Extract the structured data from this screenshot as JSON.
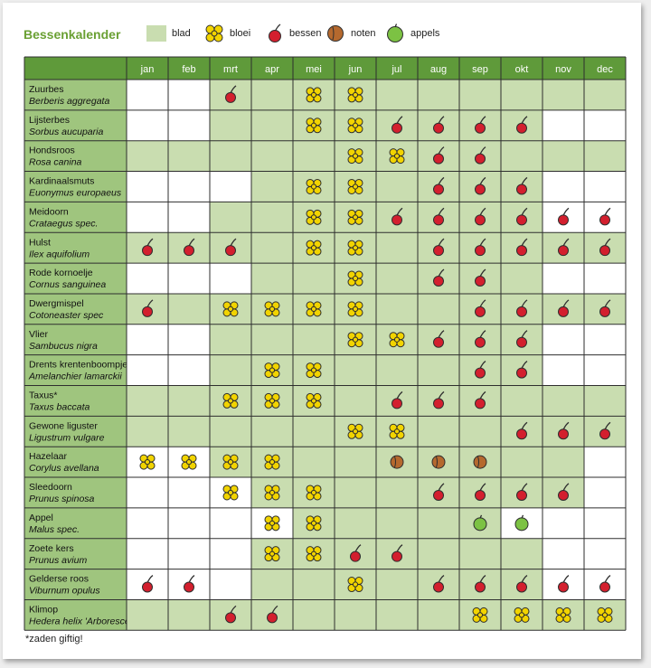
{
  "title": "Bessenkalender",
  "footnote": "*zaden giftig!",
  "legend": {
    "blad": "blad",
    "bloei": "bloei",
    "bessen": "bessen",
    "noten": "noten",
    "appels": "appels"
  },
  "colors": {
    "header_green": "#5f9a3a",
    "leaf": "#c9ddb0",
    "name_col": "#9fc57e",
    "border": "#2e2e2e",
    "berry": "#d31f2e",
    "nut": "#b5692e",
    "apple": "#7cc243",
    "flower": "#f2d400"
  },
  "chart_data": {
    "type": "table",
    "title": "Bessenkalender",
    "months": [
      "jan",
      "feb",
      "mrt",
      "apr",
      "mei",
      "jun",
      "jul",
      "aug",
      "sep",
      "okt",
      "nov",
      "dec"
    ],
    "rows": [
      {
        "name": "Zuurbes",
        "latin": "Berberis aggregata",
        "leaf": [
          0,
          0,
          1,
          1,
          1,
          1,
          1,
          1,
          1,
          1,
          1,
          1
        ],
        "marks": [
          "",
          "",
          "bessen",
          "",
          "bloei",
          "bloei",
          "",
          "",
          "",
          "",
          "",
          ""
        ]
      },
      {
        "name": "Lijsterbes",
        "latin": "Sorbus aucuparia",
        "leaf": [
          0,
          0,
          1,
          1,
          1,
          1,
          1,
          1,
          1,
          1,
          0,
          0
        ],
        "marks": [
          "",
          "",
          "",
          "",
          "bloei",
          "bloei",
          "bessen",
          "bessen",
          "bessen",
          "bessen",
          "",
          ""
        ]
      },
      {
        "name": "Hondsroos",
        "latin": "Rosa canina",
        "leaf": [
          1,
          1,
          1,
          1,
          1,
          1,
          1,
          1,
          1,
          1,
          1,
          1
        ],
        "marks": [
          "",
          "",
          "",
          "",
          "",
          "bloei",
          "bloei",
          "bessen",
          "bessen",
          "",
          "",
          ""
        ]
      },
      {
        "name": "Kardinaalsmuts",
        "latin": "Euonymus europaeus",
        "leaf": [
          0,
          0,
          0,
          1,
          1,
          1,
          1,
          1,
          1,
          1,
          0,
          0
        ],
        "marks": [
          "",
          "",
          "",
          "",
          "bloei",
          "bloei",
          "",
          "bessen",
          "bessen",
          "bessen",
          "",
          ""
        ]
      },
      {
        "name": "Meidoorn",
        "latin": "Crataegus spec.",
        "leaf": [
          0,
          0,
          1,
          1,
          1,
          1,
          1,
          1,
          1,
          1,
          0,
          0
        ],
        "marks": [
          "",
          "",
          "",
          "",
          "bloei",
          "bloei",
          "bessen",
          "bessen",
          "bessen",
          "bessen",
          "bessen",
          "bessen"
        ]
      },
      {
        "name": "Hulst",
        "latin": "Ilex aquifolium",
        "leaf": [
          1,
          1,
          1,
          1,
          1,
          1,
          1,
          1,
          1,
          1,
          1,
          1
        ],
        "marks": [
          "bessen",
          "bessen",
          "bessen",
          "",
          "bloei",
          "bloei",
          "",
          "bessen",
          "bessen",
          "bessen",
          "bessen",
          "bessen"
        ]
      },
      {
        "name": "Rode kornoelje",
        "latin": "Cornus sanguinea",
        "leaf": [
          0,
          0,
          0,
          1,
          1,
          1,
          1,
          1,
          1,
          1,
          0,
          0
        ],
        "marks": [
          "",
          "",
          "",
          "",
          "",
          "bloei",
          "",
          "bessen",
          "bessen",
          "",
          "",
          ""
        ]
      },
      {
        "name": "Dwergmispel",
        "latin": "Cotoneaster spec",
        "leaf": [
          1,
          1,
          1,
          1,
          1,
          1,
          1,
          1,
          1,
          1,
          1,
          1
        ],
        "marks": [
          "bessen",
          "",
          "bloei",
          "bloei",
          "bloei",
          "bloei",
          "",
          "",
          "bessen",
          "bessen",
          "bessen",
          "bessen"
        ]
      },
      {
        "name": "Vlier",
        "latin": "Sambucus nigra",
        "leaf": [
          0,
          0,
          1,
          1,
          1,
          1,
          1,
          1,
          1,
          1,
          0,
          0
        ],
        "marks": [
          "",
          "",
          "",
          "",
          "",
          "bloei",
          "bloei",
          "bessen",
          "bessen",
          "bessen",
          "",
          ""
        ]
      },
      {
        "name": "Drents krentenboompje",
        "latin": "Amelanchier lamarckii",
        "leaf": [
          0,
          0,
          1,
          1,
          1,
          1,
          1,
          1,
          1,
          1,
          0,
          0
        ],
        "marks": [
          "",
          "",
          "",
          "bloei",
          "bloei",
          "",
          "",
          "",
          "bessen",
          "bessen",
          "",
          ""
        ]
      },
      {
        "name": "Taxus*",
        "latin": "Taxus baccata",
        "leaf": [
          1,
          1,
          1,
          1,
          1,
          1,
          1,
          1,
          1,
          1,
          1,
          1
        ],
        "marks": [
          "",
          "",
          "bloei",
          "bloei",
          "bloei",
          "",
          "bessen",
          "bessen",
          "bessen",
          "",
          "",
          ""
        ]
      },
      {
        "name": "Gewone liguster",
        "latin": "Ligustrum vulgare",
        "leaf": [
          1,
          1,
          1,
          1,
          1,
          1,
          1,
          1,
          1,
          1,
          1,
          1
        ],
        "marks": [
          "",
          "",
          "",
          "",
          "",
          "bloei",
          "bloei",
          "",
          "",
          "bessen",
          "bessen",
          "bessen"
        ]
      },
      {
        "name": "Hazelaar",
        "latin": "Corylus avellana",
        "leaf": [
          0,
          0,
          1,
          1,
          1,
          1,
          1,
          1,
          1,
          1,
          1,
          0
        ],
        "marks": [
          "bloei",
          "bloei",
          "bloei",
          "bloei",
          "",
          "",
          "noten",
          "noten",
          "noten",
          "",
          "",
          ""
        ]
      },
      {
        "name": "Sleedoorn",
        "latin": "Prunus spinosa",
        "leaf": [
          0,
          0,
          0,
          1,
          1,
          1,
          1,
          1,
          1,
          1,
          1,
          0
        ],
        "marks": [
          "",
          "",
          "bloei",
          "bloei",
          "bloei",
          "",
          "",
          "bessen",
          "bessen",
          "bessen",
          "bessen",
          ""
        ]
      },
      {
        "name": "Appel",
        "latin": "Malus spec.",
        "leaf": [
          0,
          0,
          0,
          0,
          1,
          1,
          1,
          1,
          1,
          0,
          0,
          0
        ],
        "marks": [
          "",
          "",
          "",
          "bloei",
          "bloei",
          "",
          "",
          "",
          "appels",
          "appels",
          "",
          ""
        ]
      },
      {
        "name": "Zoete kers",
        "latin": "Prunus avium",
        "leaf": [
          0,
          0,
          0,
          1,
          1,
          1,
          1,
          1,
          1,
          1,
          0,
          0
        ],
        "marks": [
          "",
          "",
          "",
          "bloei",
          "bloei",
          "bessen",
          "bessen",
          "",
          "",
          "",
          "",
          ""
        ]
      },
      {
        "name": "Gelderse roos",
        "latin": "Viburnum opulus",
        "leaf": [
          0,
          0,
          0,
          1,
          1,
          1,
          1,
          1,
          1,
          1,
          0,
          0
        ],
        "marks": [
          "bessen",
          "bessen",
          "",
          "",
          "",
          "bloei",
          "",
          "bessen",
          "bessen",
          "bessen",
          "bessen",
          "bessen"
        ]
      },
      {
        "name": "Klimop",
        "latin": "Hedera helix 'Arborescens'",
        "leaf": [
          1,
          1,
          1,
          1,
          1,
          1,
          1,
          1,
          1,
          1,
          1,
          1
        ],
        "marks": [
          "",
          "",
          "bessen",
          "bessen",
          "",
          "",
          "",
          "",
          "bloei",
          "bloei",
          "bloei",
          "bloei"
        ]
      }
    ]
  }
}
